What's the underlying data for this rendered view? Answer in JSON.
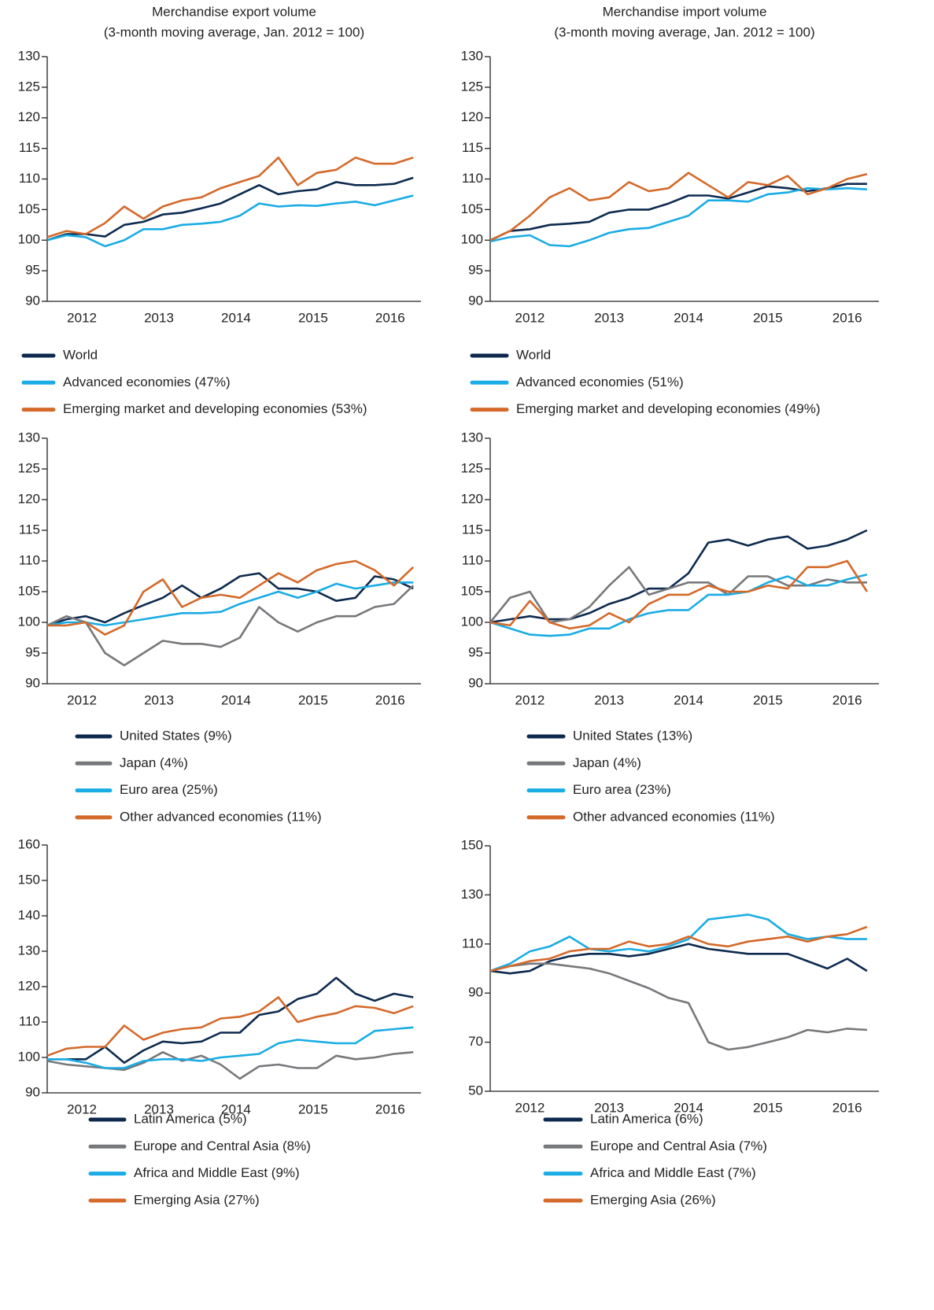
{
  "chart_data": [
    {
      "type": "line",
      "title": "Merchandise export volume",
      "subtitle": "(3-month moving average, Jan. 2012 = 100)",
      "x": [
        2012,
        2012.25,
        2012.5,
        2012.75,
        2013,
        2013.25,
        2013.5,
        2013.75,
        2014,
        2014.25,
        2014.5,
        2014.75,
        2015,
        2015.25,
        2015.5,
        2015.75,
        2016,
        2016.25,
        2016.5,
        2016.75
      ],
      "xlim": [
        2012,
        2016.85
      ],
      "xticks": [
        {
          "value": 2012.45,
          "label": "2012"
        },
        {
          "value": 2013.45,
          "label": "2013"
        },
        {
          "value": 2014.45,
          "label": "2014"
        },
        {
          "value": 2015.45,
          "label": "2015"
        },
        {
          "value": 2016.45,
          "label": "2016"
        }
      ],
      "ylim": [
        90,
        130
      ],
      "yticks": [
        90,
        95,
        100,
        105,
        110,
        115,
        120,
        125,
        130
      ],
      "series": [
        {
          "name": "World",
          "color": "#0d2a4e",
          "values": [
            100,
            101,
            101,
            100.6,
            102.5,
            103,
            104.2,
            104.5,
            105.2,
            106,
            107.5,
            109,
            107.5,
            108,
            108.3,
            109.5,
            109,
            109,
            109.2,
            110.2
          ]
        },
        {
          "name": "Advanced economies (47%)",
          "color": "#1aace4",
          "values": [
            100,
            100.8,
            100.5,
            99,
            100,
            101.8,
            101.8,
            102.5,
            102.7,
            103,
            104,
            106,
            105.5,
            105.7,
            105.6,
            106,
            106.3,
            105.7,
            106.5,
            107.3
          ]
        },
        {
          "name": "Emerging market and developing economies (53%)",
          "color": "#d4692a",
          "values": [
            100.5,
            101.5,
            101,
            102.8,
            105.5,
            103.5,
            105.5,
            106.5,
            107,
            108.5,
            109.5,
            110.5,
            113.5,
            109,
            111,
            111.5,
            113.5,
            112.5,
            112.5,
            113.5
          ]
        }
      ]
    },
    {
      "type": "line",
      "title": "Merchandise import volume",
      "subtitle": "(3-month moving average, Jan. 2012 = 100)",
      "x": [
        2012,
        2012.25,
        2012.5,
        2012.75,
        2013,
        2013.25,
        2013.5,
        2013.75,
        2014,
        2014.25,
        2014.5,
        2014.75,
        2015,
        2015.25,
        2015.5,
        2015.75,
        2016,
        2016.25,
        2016.5,
        2016.75
      ],
      "xlim": [
        2012,
        2016.9
      ],
      "xticks": [
        {
          "value": 2012.5,
          "label": "2012"
        },
        {
          "value": 2013.5,
          "label": "2013"
        },
        {
          "value": 2014.5,
          "label": "2014"
        },
        {
          "value": 2015.5,
          "label": "2015"
        },
        {
          "value": 2016.5,
          "label": "2016"
        }
      ],
      "ylim": [
        90,
        130
      ],
      "yticks": [
        90,
        95,
        100,
        105,
        110,
        115,
        120,
        125,
        130
      ],
      "series": [
        {
          "name": "World",
          "color": "#0d2a4e",
          "values": [
            100,
            101.5,
            101.8,
            102.5,
            102.7,
            103,
            104.5,
            105,
            105,
            106,
            107.3,
            107.3,
            106.8,
            107.8,
            108.8,
            108.5,
            108,
            108.5,
            109.2,
            109.2
          ]
        },
        {
          "name": "Advanced economies (51%)",
          "color": "#1aace4",
          "values": [
            99.8,
            100.5,
            100.8,
            99.2,
            99,
            100,
            101.2,
            101.8,
            102,
            103,
            104,
            106.5,
            106.5,
            106.3,
            107.5,
            107.8,
            108.5,
            108.3,
            108.5,
            108.3
          ]
        },
        {
          "name": "Emerging market and developing economies (49%)",
          "color": "#d4692a",
          "values": [
            100,
            101.5,
            104,
            107,
            108.5,
            106.5,
            107,
            109.5,
            108,
            108.5,
            111,
            109,
            107,
            109.5,
            109,
            110.5,
            107.5,
            108.5,
            110,
            110.8
          ]
        }
      ]
    },
    {
      "type": "line",
      "x": [
        2012,
        2012.25,
        2012.5,
        2012.75,
        2013,
        2013.25,
        2013.5,
        2013.75,
        2014,
        2014.25,
        2014.5,
        2014.75,
        2015,
        2015.25,
        2015.5,
        2015.75,
        2016,
        2016.25,
        2016.5,
        2016.75
      ],
      "xlim": [
        2012,
        2016.85
      ],
      "xticks": [
        {
          "value": 2012.45,
          "label": "2012"
        },
        {
          "value": 2013.45,
          "label": "2013"
        },
        {
          "value": 2014.45,
          "label": "2014"
        },
        {
          "value": 2015.45,
          "label": "2015"
        },
        {
          "value": 2016.45,
          "label": "2016"
        }
      ],
      "ylim": [
        90,
        130
      ],
      "yticks": [
        90,
        95,
        100,
        105,
        110,
        115,
        120,
        125,
        130
      ],
      "series": [
        {
          "name": "United States (9%)",
          "color": "#0d2a4e",
          "values": [
            99.5,
            100.5,
            101,
            100,
            101.5,
            102.8,
            104,
            106,
            104,
            105.5,
            107.5,
            108,
            105.5,
            105.5,
            105,
            103.5,
            104,
            107.5,
            107,
            105.5
          ]
        },
        {
          "name": "Japan (4%)",
          "color": "#77787b",
          "values": [
            99.5,
            101,
            100,
            95,
            93,
            95,
            97,
            96.5,
            96.5,
            96,
            97.5,
            102.5,
            100,
            98.5,
            100,
            101,
            101,
            102.5,
            103,
            106
          ]
        },
        {
          "name": "Euro area (25%)",
          "color": "#1aace4",
          "values": [
            99.5,
            100,
            100,
            99.5,
            100,
            100.5,
            101,
            101.5,
            101.5,
            101.7,
            103,
            104,
            105,
            104,
            105,
            106.3,
            105.5,
            106,
            106.5,
            106.5
          ]
        },
        {
          "name": "Other advanced economies (11%)",
          "color": "#d4692a",
          "values": [
            99.5,
            99.5,
            100,
            98,
            99.5,
            105,
            107,
            102.5,
            104,
            104.5,
            104,
            106,
            108,
            106.5,
            108.5,
            109.5,
            110,
            108.5,
            106,
            109
          ]
        }
      ]
    },
    {
      "type": "line",
      "x": [
        2012,
        2012.25,
        2012.5,
        2012.75,
        2013,
        2013.25,
        2013.5,
        2013.75,
        2014,
        2014.25,
        2014.5,
        2014.75,
        2015,
        2015.25,
        2015.5,
        2015.75,
        2016,
        2016.25,
        2016.5,
        2016.75
      ],
      "xlim": [
        2012,
        2016.9
      ],
      "xticks": [
        {
          "value": 2012.5,
          "label": "2012"
        },
        {
          "value": 2013.5,
          "label": "2013"
        },
        {
          "value": 2014.5,
          "label": "2014"
        },
        {
          "value": 2015.5,
          "label": "2015"
        },
        {
          "value": 2016.5,
          "label": "2016"
        }
      ],
      "ylim": [
        90,
        130
      ],
      "yticks": [
        90,
        95,
        100,
        105,
        110,
        115,
        120,
        125,
        130
      ],
      "series": [
        {
          "name": "United States (13%)",
          "color": "#0d2a4e",
          "values": [
            100,
            100.5,
            101,
            100.5,
            100.5,
            101.5,
            103,
            104,
            105.5,
            105.5,
            108,
            113,
            113.5,
            112.5,
            113.5,
            114,
            112,
            112.5,
            113.5,
            115
          ]
        },
        {
          "name": "Japan (4%)",
          "color": "#77787b",
          "values": [
            100,
            104,
            105,
            100,
            100.5,
            102.5,
            106,
            109,
            104.5,
            105.5,
            106.5,
            106.5,
            104.5,
            107.5,
            107.5,
            106,
            106,
            107,
            106.5,
            106.5
          ]
        },
        {
          "name": "Euro area (23%)",
          "color": "#1aace4",
          "values": [
            100,
            99,
            98,
            97.8,
            98,
            99,
            99,
            100.5,
            101.5,
            102,
            102,
            104.5,
            104.5,
            105,
            106.5,
            107.5,
            106,
            106,
            107,
            107.8
          ]
        },
        {
          "name": "Other advanced economies (11%)",
          "color": "#d4692a",
          "values": [
            100,
            99.5,
            103.5,
            100,
            99,
            99.5,
            101.5,
            100,
            103,
            104.5,
            104.5,
            106,
            105,
            105,
            106,
            105.5,
            109,
            109,
            110,
            105
          ]
        }
      ]
    },
    {
      "type": "line",
      "x": [
        2012,
        2012.25,
        2012.5,
        2012.75,
        2013,
        2013.25,
        2013.5,
        2013.75,
        2014,
        2014.25,
        2014.5,
        2014.75,
        2015,
        2015.25,
        2015.5,
        2015.75,
        2016,
        2016.25,
        2016.5,
        2016.75
      ],
      "xlim": [
        2012,
        2016.85
      ],
      "xticks": [
        {
          "value": 2012.45,
          "label": "2012"
        },
        {
          "value": 2013.45,
          "label": "2013"
        },
        {
          "value": 2014.45,
          "label": "2014"
        },
        {
          "value": 2015.45,
          "label": "2015"
        },
        {
          "value": 2016.45,
          "label": "2016"
        }
      ],
      "ylim": [
        90,
        160
      ],
      "yticks": [
        90,
        100,
        110,
        120,
        130,
        140,
        150,
        160
      ],
      "series": [
        {
          "name": "Latin America (5%)",
          "color": "#0d2a4e",
          "values": [
            99.5,
            99.5,
            99.5,
            103,
            98.5,
            102,
            104.5,
            104,
            104.5,
            107,
            107,
            112,
            113,
            116.5,
            118,
            122.5,
            118,
            116,
            118,
            117
          ]
        },
        {
          "name": "Europe and Central Asia (8%)",
          "color": "#77787b",
          "values": [
            99,
            98,
            97.5,
            97,
            96.5,
            98.5,
            101.5,
            99,
            100.5,
            98,
            94,
            97.5,
            98,
            97,
            97,
            100.5,
            99.5,
            100,
            101,
            101.5
          ]
        },
        {
          "name": "Africa and Middle East (9%)",
          "color": "#1aace4",
          "values": [
            99.5,
            99.5,
            98.5,
            97,
            97,
            99,
            99.5,
            99.5,
            99,
            100,
            100.5,
            101,
            104,
            105,
            104.5,
            104,
            104,
            107.5,
            108,
            108.5
          ]
        },
        {
          "name": "Emerging Asia (27%)",
          "color": "#d4692a",
          "values": [
            100.5,
            102.5,
            103,
            103,
            109,
            105,
            107,
            108,
            108.5,
            111,
            111.5,
            113,
            117,
            110,
            111.5,
            112.5,
            114.5,
            114,
            112.5,
            114.5
          ]
        }
      ]
    },
    {
      "type": "line",
      "x": [
        2012,
        2012.25,
        2012.5,
        2012.75,
        2013,
        2013.25,
        2013.5,
        2013.75,
        2014,
        2014.25,
        2014.5,
        2014.75,
        2015,
        2015.25,
        2015.5,
        2015.75,
        2016,
        2016.25,
        2016.5,
        2016.75
      ],
      "xlim": [
        2012,
        2016.9
      ],
      "xticks": [
        {
          "value": 2012.5,
          "label": "2012"
        },
        {
          "value": 2013.5,
          "label": "2013"
        },
        {
          "value": 2014.5,
          "label": "2014"
        },
        {
          "value": 2015.5,
          "label": "2015"
        },
        {
          "value": 2016.5,
          "label": "2016"
        }
      ],
      "ylim": [
        50,
        150
      ],
      "yticks": [
        50,
        70,
        90,
        110,
        130,
        150
      ],
      "series": [
        {
          "name": "Latin America (6%)",
          "color": "#0d2a4e",
          "values": [
            99,
            98,
            99,
            103,
            105,
            106,
            106,
            105,
            106,
            108,
            110,
            108,
            107,
            106,
            106,
            106,
            103,
            100,
            104,
            99
          ]
        },
        {
          "name": "Europe and Central Asia (7%)",
          "color": "#77787b",
          "values": [
            99,
            101,
            102,
            102,
            101,
            100,
            98,
            95,
            92,
            88,
            86,
            70,
            67,
            68,
            70,
            72,
            75,
            74,
            75.5,
            75
          ]
        },
        {
          "name": "Africa and Middle East (7%)",
          "color": "#1aace4",
          "values": [
            99,
            102,
            107,
            109,
            113,
            108,
            107,
            108,
            107,
            109,
            112,
            120,
            121,
            122,
            120,
            114,
            112,
            113,
            112,
            112
          ]
        },
        {
          "name": "Emerging Asia (26%)",
          "color": "#d4692a",
          "values": [
            99,
            101,
            103,
            104,
            107,
            108,
            108,
            111,
            109,
            110,
            113,
            110,
            109,
            111,
            112,
            113,
            111,
            113,
            114,
            117
          ]
        }
      ]
    }
  ]
}
